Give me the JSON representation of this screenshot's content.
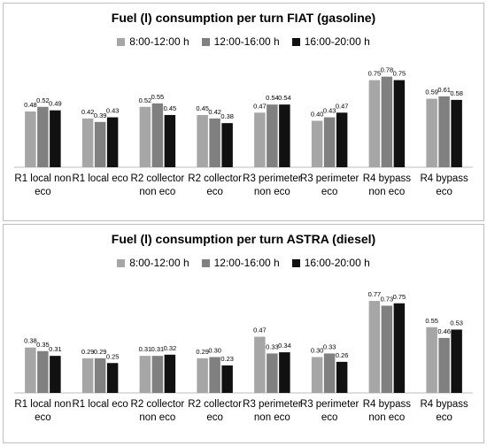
{
  "chart_data": [
    {
      "type": "bar",
      "title": "Fuel (l) consumption per turn FIAT (gasoline)",
      "categories": [
        [
          "R1 local non",
          "eco"
        ],
        [
          "R1 local eco"
        ],
        [
          "R2 collector",
          "non eco"
        ],
        [
          "R2 collector",
          "eco"
        ],
        [
          "R3 perimeter",
          "non eco"
        ],
        [
          "R3 perimeter",
          "eco"
        ],
        [
          "R4 bypass",
          "non eco"
        ],
        [
          "R4 bypass",
          "eco"
        ]
      ],
      "series": [
        {
          "name": "8:00-12:00 h",
          "color": "#a6a6a6",
          "values": [
            0.48,
            0.42,
            0.52,
            0.45,
            0.47,
            0.4,
            0.75,
            0.59
          ]
        },
        {
          "name": "12:00-16:00 h",
          "color": "#808080",
          "values": [
            0.52,
            0.39,
            0.55,
            0.42,
            0.54,
            0.43,
            0.78,
            0.61
          ]
        },
        {
          "name": "16:00-20:00 h",
          "color": "#111111",
          "values": [
            0.49,
            0.43,
            0.45,
            0.38,
            0.54,
            0.47,
            0.75,
            0.58
          ]
        }
      ],
      "ylim": [
        0,
        0.8
      ],
      "grid": false,
      "legend_position": "top"
    },
    {
      "type": "bar",
      "title": "Fuel (l) consumption per turn ASTRA (diesel)",
      "categories": [
        [
          "R1 local non",
          "eco"
        ],
        [
          "R1 local eco"
        ],
        [
          "R2 collector",
          "non eco"
        ],
        [
          "R2 collector",
          "eco"
        ],
        [
          "R3 perimeter",
          "non eco"
        ],
        [
          "R3 perimeter",
          "eco"
        ],
        [
          "R4 bypass",
          "non eco"
        ],
        [
          "R4 bypass",
          "eco"
        ]
      ],
      "series": [
        {
          "name": "8:00-12:00 h",
          "color": "#a6a6a6",
          "values": [
            0.38,
            0.29,
            0.31,
            0.29,
            0.47,
            0.3,
            0.77,
            0.55
          ]
        },
        {
          "name": "12:00-16:00 h",
          "color": "#808080",
          "values": [
            0.35,
            0.29,
            0.31,
            0.3,
            0.33,
            0.33,
            0.73,
            0.46
          ]
        },
        {
          "name": "16:00-20:00 h",
          "color": "#111111",
          "values": [
            0.31,
            0.25,
            0.32,
            0.23,
            0.34,
            0.26,
            0.75,
            0.53
          ]
        }
      ],
      "ylim": [
        0,
        0.8
      ],
      "grid": false,
      "legend_position": "top"
    }
  ]
}
